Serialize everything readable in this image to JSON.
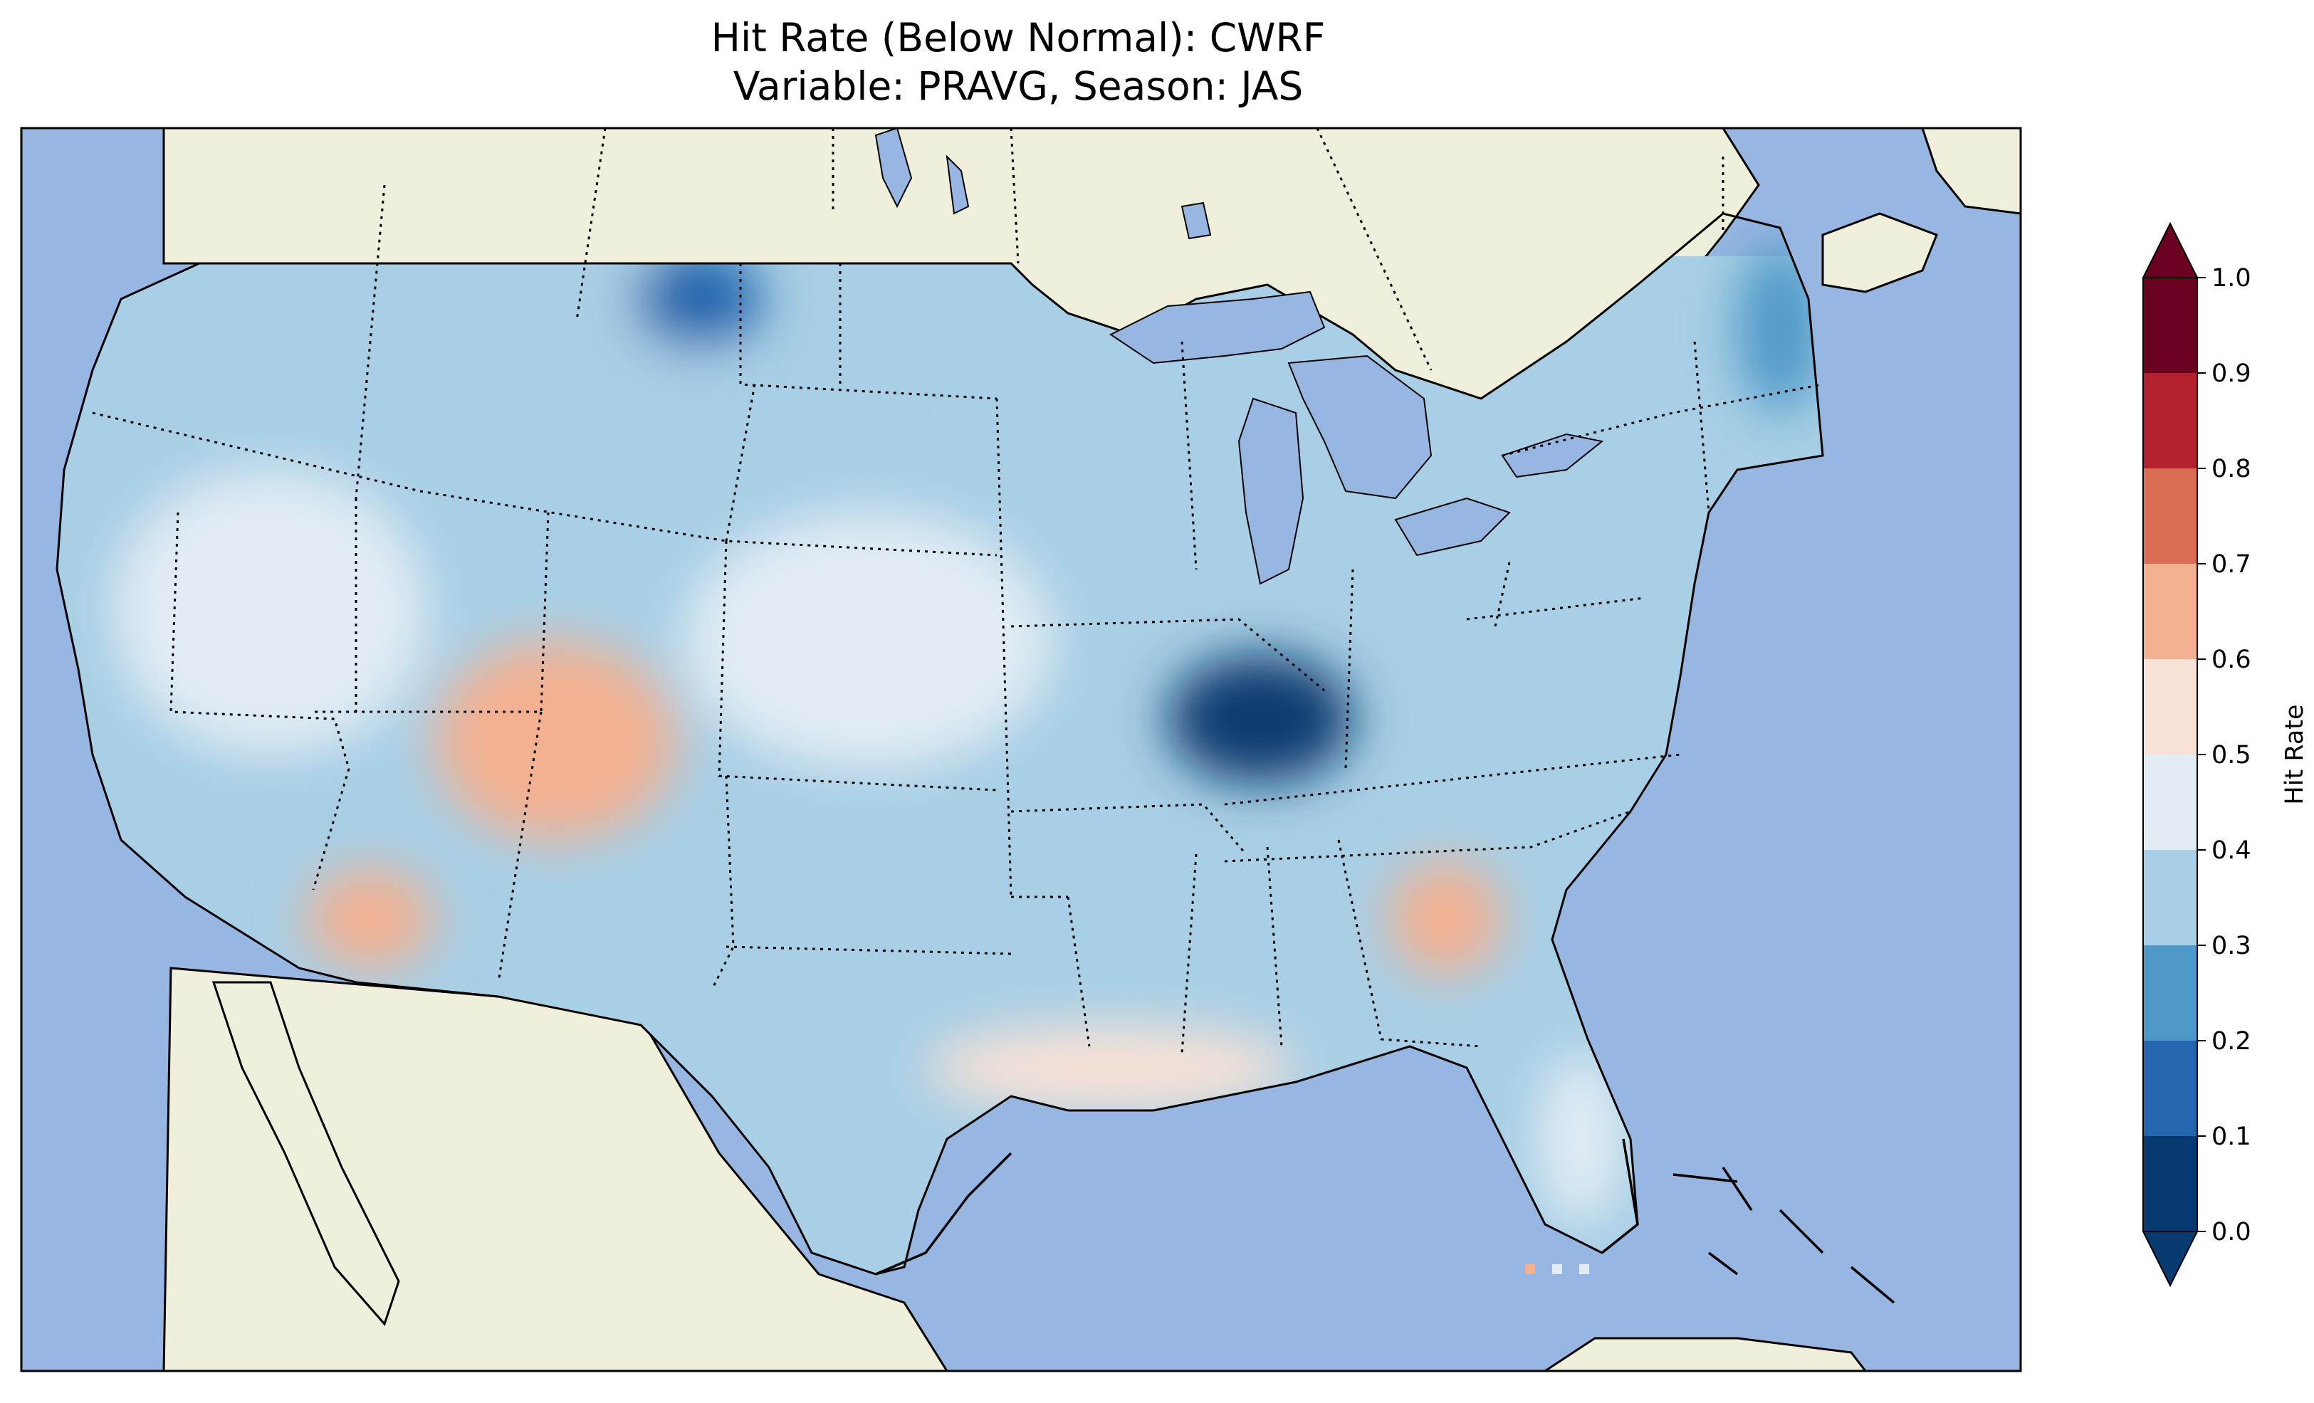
{
  "title": {
    "line1": "Hit Rate (Below Normal): CWRF",
    "line2": "Variable: PRAVG, Season: JAS"
  },
  "colors": {
    "ocean": "#97b6e1",
    "land": "#efefdb",
    "lakes": "#97b6e1",
    "border": "#000000"
  },
  "colorbar": {
    "label": "Hit Rate",
    "ticks": [
      "0.0",
      "0.1",
      "0.2",
      "0.3",
      "0.4",
      "0.5",
      "0.6",
      "0.7",
      "0.8",
      "0.9",
      "1.0"
    ],
    "bin_colors": [
      "#073a70",
      "#2466ae",
      "#4e98c8",
      "#a8cfe5",
      "#e2ecf4",
      "#f8e2d6",
      "#f4b191",
      "#dc6d55",
      "#b3202e",
      "#6b0120"
    ],
    "extend_low_color": "#073a70",
    "extend_high_color": "#6b0120",
    "range": [
      0.0,
      1.0
    ]
  },
  "chart_data": {
    "type": "heatmap",
    "title": "Hit Rate (Below Normal): CWRF\nVariable: PRAVG, Season: JAS",
    "colorbar_label": "Hit Rate",
    "value_range": [
      0.0,
      1.0
    ],
    "levels": [
      0.0,
      0.1,
      0.2,
      0.3,
      0.4,
      0.5,
      0.6,
      0.7,
      0.8,
      0.9,
      1.0
    ],
    "regions": [
      {
        "region": "Pacific Northwest coast",
        "value": 0.35
      },
      {
        "region": "Northern Rockies / Montana",
        "value": 0.3
      },
      {
        "region": "Northeast Montana",
        "value": 0.15
      },
      {
        "region": "Great Basin",
        "value": 0.45
      },
      {
        "region": "Four Corners",
        "value": 0.65
      },
      {
        "region": "Southern California",
        "value": 0.6
      },
      {
        "region": "Ozarks / Lower Ohio Valley",
        "value": 0.05
      },
      {
        "region": "Central Plains",
        "value": 0.4
      },
      {
        "region": "Upper Midwest",
        "value": 0.3
      },
      {
        "region": "Georgia",
        "value": 0.65
      },
      {
        "region": "Gulf Coast",
        "value": 0.55
      },
      {
        "region": "Florida",
        "value": 0.45
      },
      {
        "region": "New England",
        "value": 0.25
      },
      {
        "region": "South Texas",
        "value": 0.35
      }
    ]
  }
}
